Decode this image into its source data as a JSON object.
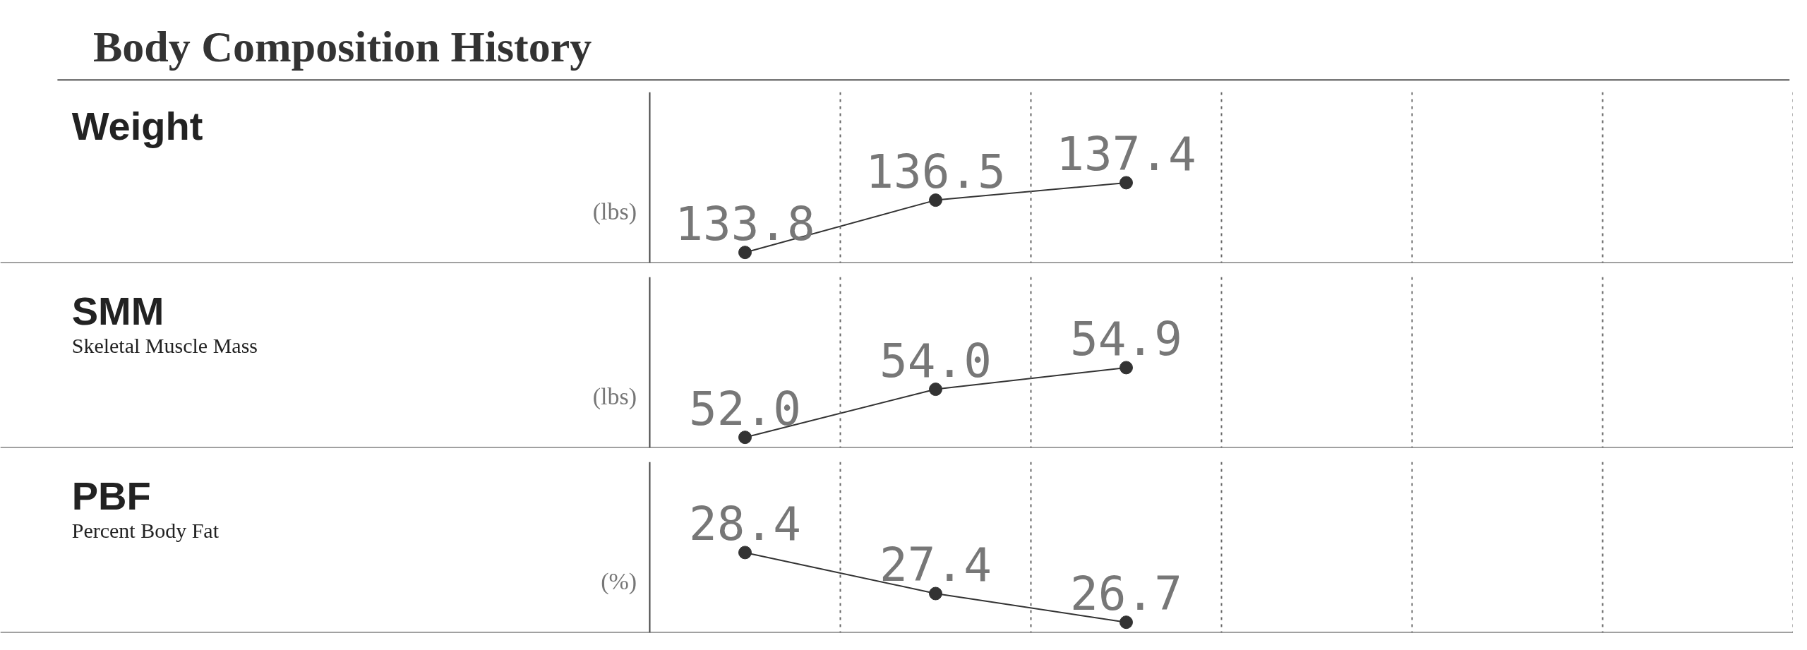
{
  "chart_data": [
    {
      "type": "other",
      "title": "Body Composition History"
    },
    {
      "type": "line",
      "annotations": [
        "Weight"
      ],
      "ylabel": "(lbs)",
      "categories": [
        null,
        null,
        null,
        null,
        null,
        null
      ],
      "values": [
        133.8,
        136.5,
        137.4,
        null,
        null,
        null
      ],
      "value_labels": [
        "133.8",
        "136.5",
        "137.4",
        null,
        null,
        null
      ],
      "color": "#333333",
      "data_labels": true,
      "marker": "circle",
      "line_style": "solid",
      "grid": "x",
      "tick_labels": false
    },
    {
      "type": "line",
      "annotations": [
        "SMM",
        "Skeletal Muscle Mass"
      ],
      "ylabel": "(lbs)",
      "categories": [
        null,
        null,
        null,
        null,
        null,
        null
      ],
      "values": [
        52.0,
        54.0,
        54.9,
        null,
        null,
        null
      ],
      "value_labels": [
        "52.0",
        "54.0",
        "54.9",
        null,
        null,
        null
      ],
      "color": "#333333",
      "data_labels": true,
      "marker": "circle",
      "line_style": "solid",
      "grid": "x",
      "tick_labels": false
    },
    {
      "type": "line",
      "annotations": [
        "PBF",
        "Percent Body Fat"
      ],
      "ylabel": "(%)",
      "categories": [
        null,
        null,
        null,
        null,
        null,
        null
      ],
      "values": [
        28.4,
        27.4,
        26.7,
        null,
        null,
        null
      ],
      "value_labels": [
        "28.4",
        "27.4",
        "26.7",
        null,
        null,
        null
      ],
      "color": "#333333",
      "data_labels": true,
      "marker": "circle",
      "line_style": "solid",
      "grid": "x",
      "tick_labels": false
    }
  ]
}
